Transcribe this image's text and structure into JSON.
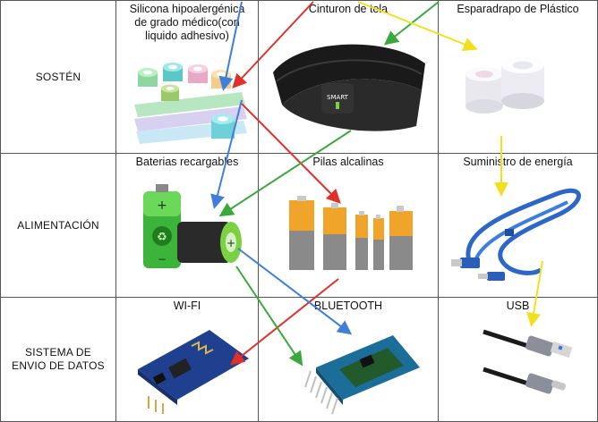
{
  "rows": [
    {
      "label": "SOSTÉN"
    },
    {
      "label": "ALIMENTACIÓN"
    },
    {
      "label_lines": [
        "SISTEMA DE",
        "ENVIO DE DATOS"
      ]
    }
  ],
  "items": [
    {
      "title_lines": [
        "Silicona hipoalergénica",
        "de grado médico(con",
        "liquido adhesivo)"
      ],
      "image": "medical-tape-rolls"
    },
    {
      "title_lines": [
        "Cinturon de tela"
      ],
      "image": "chest-strap-belt",
      "logo_text": "SMART"
    },
    {
      "title_lines": [
        "Esparadrapo de Plástico"
      ],
      "image": "plastic-tape-rolls"
    },
    {
      "title_lines": [
        "Baterias recargables"
      ],
      "image": "rechargeable-batteries"
    },
    {
      "title_lines": [
        "Pilas alcalinas"
      ],
      "image": "alkaline-batteries"
    },
    {
      "title_lines": [
        "Suministro de energía"
      ],
      "image": "usb-cable"
    },
    {
      "title_lines": [
        "WI-FI"
      ],
      "image": "wifi-module"
    },
    {
      "title_lines": [
        "BLUETOOTH"
      ],
      "image": "bluetooth-module"
    },
    {
      "title_lines": [
        "USB"
      ],
      "image": "usb-c-cable"
    }
  ],
  "colors": {
    "red": "#e0302a",
    "blue": "#3f7fd9",
    "green": "#3aa83f",
    "yellow": "#f2e020",
    "border": "#555555"
  }
}
